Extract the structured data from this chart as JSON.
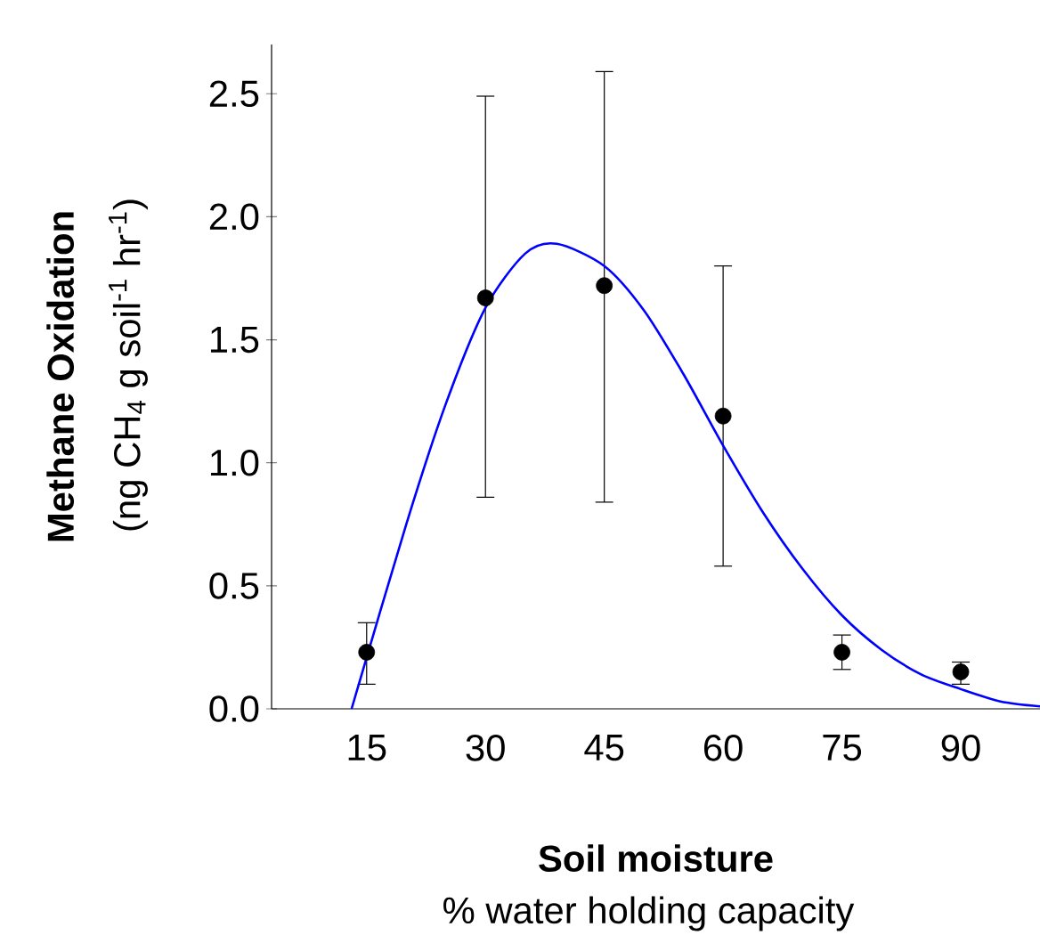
{
  "chart_data": {
    "type": "scatter",
    "xlabel": "Soil moisture",
    "ylabel": "Methane Oxidation",
    "annotations": [
      "(ng CH$_{4}$ g soil$^{-1}$ hr$^{-1}$)",
      "% water holding capacity"
    ],
    "xlim": [
      3,
      100
    ],
    "ylim": [
      0,
      2.7
    ],
    "xticks": [
      15,
      30,
      45,
      60,
      75,
      90
    ],
    "yticks": [
      {
        "value": 0,
        "label": "0.0"
      },
      {
        "value": 0.5,
        "label": "0.5"
      },
      {
        "value": 1,
        "label": "1.0"
      },
      {
        "value": 1.5,
        "label": "1.5"
      },
      {
        "value": 2,
        "label": "2.0"
      },
      {
        "value": 2.5,
        "label": "2.5"
      }
    ],
    "grid": false,
    "series": [
      {
        "color": "#000000",
        "marker": "circle",
        "x": [
          15,
          30,
          45,
          60,
          75,
          90
        ],
        "values": [
          0.23,
          1.67,
          1.72,
          1.19,
          0.23,
          0.15
        ],
        "errors": [
          [
            0.1,
            0.35
          ],
          [
            0.86,
            2.49
          ],
          [
            0.84,
            2.59
          ],
          [
            0.58,
            1.8
          ],
          [
            0.16,
            0.3
          ],
          [
            0.1,
            0.19
          ]
        ]
      },
      {
        "type": "line",
        "color": "#0000ff",
        "marker": "none",
        "line_style": "solid",
        "x": [
          13.1,
          20,
          25,
          30,
          35,
          39,
          45,
          50,
          55,
          60,
          65,
          70,
          75,
          80,
          85,
          90,
          95,
          100
        ],
        "values": [
          0,
          0.75,
          1.24,
          1.63,
          1.85,
          1.89,
          1.8,
          1.62,
          1.36,
          1.07,
          0.8,
          0.57,
          0.38,
          0.24,
          0.14,
          0.08,
          0.03,
          0.01
        ]
      }
    ]
  }
}
